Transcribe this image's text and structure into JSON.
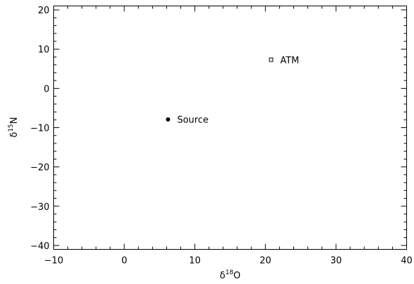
{
  "chart_data": {
    "type": "scatter",
    "xlabel": {
      "base": "δ",
      "sup": "18",
      "rest": "O"
    },
    "ylabel": {
      "base": "δ",
      "sup": "15",
      "rest": "N"
    },
    "xlim": [
      -10,
      40
    ],
    "ylim": [
      -41,
      21
    ],
    "xticks": [
      -10,
      0,
      10,
      20,
      30,
      40
    ],
    "yticks": [
      -40,
      -30,
      -20,
      -10,
      0,
      10,
      20
    ],
    "xtick_labels": [
      "−10",
      "0",
      "10",
      "20",
      "30",
      "40"
    ],
    "ytick_labels": [
      "−40",
      "−30",
      "−20",
      "−10",
      "0",
      "10",
      "20"
    ],
    "x_minor_step": 2,
    "y_minor_step": 2,
    "grid": false,
    "points": [
      {
        "label": "Source",
        "x": 6.2,
        "y": -7.9,
        "marker": "filled-circle"
      },
      {
        "label": "ATM",
        "x": 20.8,
        "y": 7.3,
        "marker": "open-square"
      }
    ]
  }
}
